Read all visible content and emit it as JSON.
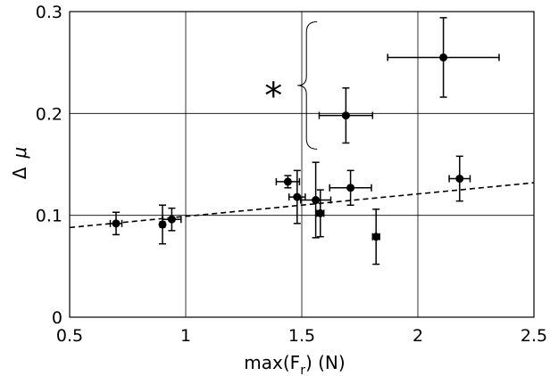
{
  "chart_data": {
    "type": "scatter",
    "xlabel": "max(F_r) (N)",
    "xlabel_main": "max(F",
    "xlabel_sub": "r",
    "xlabel_tail": ") (N)",
    "ylabel": "Δ μ",
    "ylabel_delta": "Δ",
    "ylabel_mu": "μ",
    "xlim": [
      0.5,
      2.5
    ],
    "ylim": [
      0,
      0.3
    ],
    "xticks": [
      0.5,
      1,
      1.5,
      2,
      2.5
    ],
    "xtick_labels": [
      "0.5",
      "1",
      "1.5",
      "2",
      "2.5"
    ],
    "yticks": [
      0,
      0.1,
      0.2,
      0.3
    ],
    "ytick_labels": [
      "0",
      "0.1",
      "0.2",
      "0.3"
    ],
    "grid": true,
    "points": [
      {
        "x": 0.7,
        "y": 0.092,
        "xerr": 0.025,
        "yerr": 0.011
      },
      {
        "x": 0.9,
        "y": 0.091,
        "xerr": 0.01,
        "yerr": 0.019
      },
      {
        "x": 0.94,
        "y": 0.096,
        "xerr": 0.04,
        "yerr": 0.011
      },
      {
        "x": 1.44,
        "y": 0.133,
        "xerr": 0.05,
        "yerr": 0.006
      },
      {
        "x": 1.48,
        "y": 0.118,
        "xerr": 0.035,
        "yerr": 0.026
      },
      {
        "x": 1.56,
        "y": 0.115,
        "xerr": 0.065,
        "yerr": 0.037
      },
      {
        "x": 1.58,
        "y": 0.102,
        "xerr": 0.015,
        "yerr": 0.023
      },
      {
        "x": 1.71,
        "y": 0.127,
        "xerr": 0.09,
        "yerr": 0.017
      },
      {
        "x": 1.82,
        "y": 0.079,
        "xerr": 0.015,
        "yerr": 0.027
      },
      {
        "x": 2.18,
        "y": 0.136,
        "xerr": 0.045,
        "yerr": 0.022
      },
      {
        "x": 1.69,
        "y": 0.198,
        "xerr": 0.115,
        "yerr": 0.027
      },
      {
        "x": 2.11,
        "y": 0.255,
        "xerr": 0.24,
        "yerr": 0.039
      }
    ],
    "fit_line": {
      "style": "dashed",
      "x": [
        0.5,
        2.5
      ],
      "y": [
        0.088,
        0.132
      ]
    },
    "annotation": {
      "text": "*",
      "kind": "brace",
      "x": 1.37,
      "y": 0.225,
      "brace_x": 1.52,
      "brace_y": [
        0.165,
        0.29
      ]
    }
  }
}
